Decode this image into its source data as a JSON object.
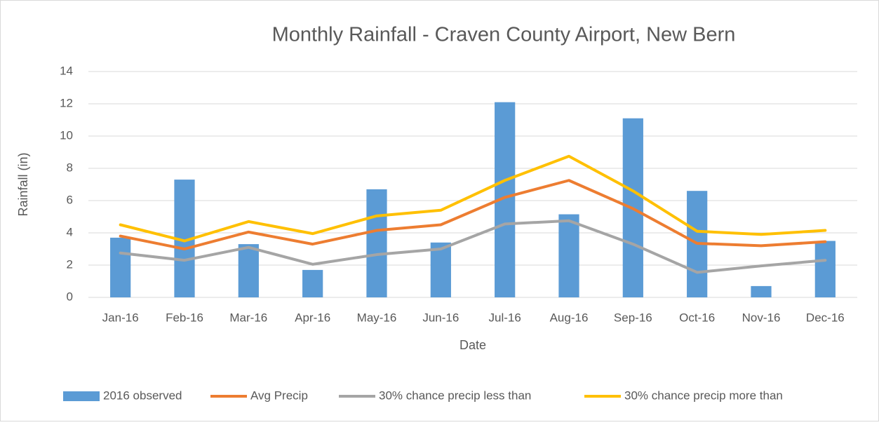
{
  "chart_data": {
    "type": "combo",
    "title": "Monthly Rainfall - Craven County Airport, New Bern",
    "y_label": "Rainfall (in)",
    "x_label": "Date",
    "categories": [
      "Jan-16",
      "Feb-16",
      "Mar-16",
      "Apr-16",
      "May-16",
      "Jun-16",
      "Jul-16",
      "Aug-16",
      "Sep-16",
      "Oct-16",
      "Nov-16",
      "Dec-16"
    ],
    "series": [
      {
        "name": "2016 observed",
        "type": "bar",
        "color": "#5b9bd5",
        "values": [
          3.7,
          7.3,
          3.3,
          1.7,
          6.7,
          3.4,
          12.1,
          5.15,
          11.1,
          6.6,
          0.7,
          3.5
        ]
      },
      {
        "name": "Avg Precip",
        "type": "line",
        "color": "#ed7d31",
        "values": [
          3.8,
          3.0,
          4.05,
          3.3,
          4.15,
          4.5,
          6.2,
          7.25,
          5.5,
          3.35,
          3.2,
          3.45
        ]
      },
      {
        "name": "30% chance precip less than",
        "type": "line",
        "color": "#a5a5a5",
        "values": [
          2.75,
          2.3,
          3.1,
          2.05,
          2.65,
          3.0,
          4.55,
          4.75,
          3.3,
          1.55,
          1.95,
          2.3
        ]
      },
      {
        "name": "30% chance precip more than",
        "type": "line",
        "color": "#ffc000",
        "values": [
          4.5,
          3.5,
          4.7,
          3.95,
          5.05,
          5.4,
          7.25,
          8.75,
          6.6,
          4.1,
          3.9,
          4.15
        ]
      }
    ],
    "ylim": [
      0,
      14
    ],
    "yticks": [
      0,
      2,
      4,
      6,
      8,
      10,
      12,
      14
    ],
    "grid": true,
    "legend": "bottom"
  }
}
